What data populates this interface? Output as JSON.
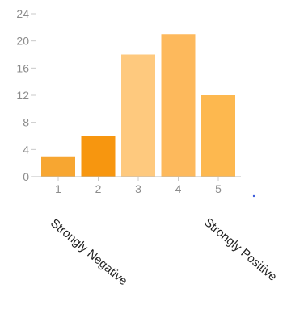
{
  "chart_data": {
    "type": "bar",
    "categories": [
      "1",
      "2",
      "3",
      "4",
      "5"
    ],
    "values": [
      3,
      6,
      18,
      21,
      12
    ],
    "ylim": [
      0,
      24
    ],
    "yticks": [
      "0",
      "4",
      "8",
      "12",
      "16",
      "20",
      "24"
    ],
    "colors": [
      "#f7a631",
      "#f7960f",
      "#fec97e",
      "#fdb95c",
      "#fdb84f"
    ],
    "grid": false,
    "annotations": [
      "Strongly Negative",
      "Strongly Positive"
    ]
  }
}
